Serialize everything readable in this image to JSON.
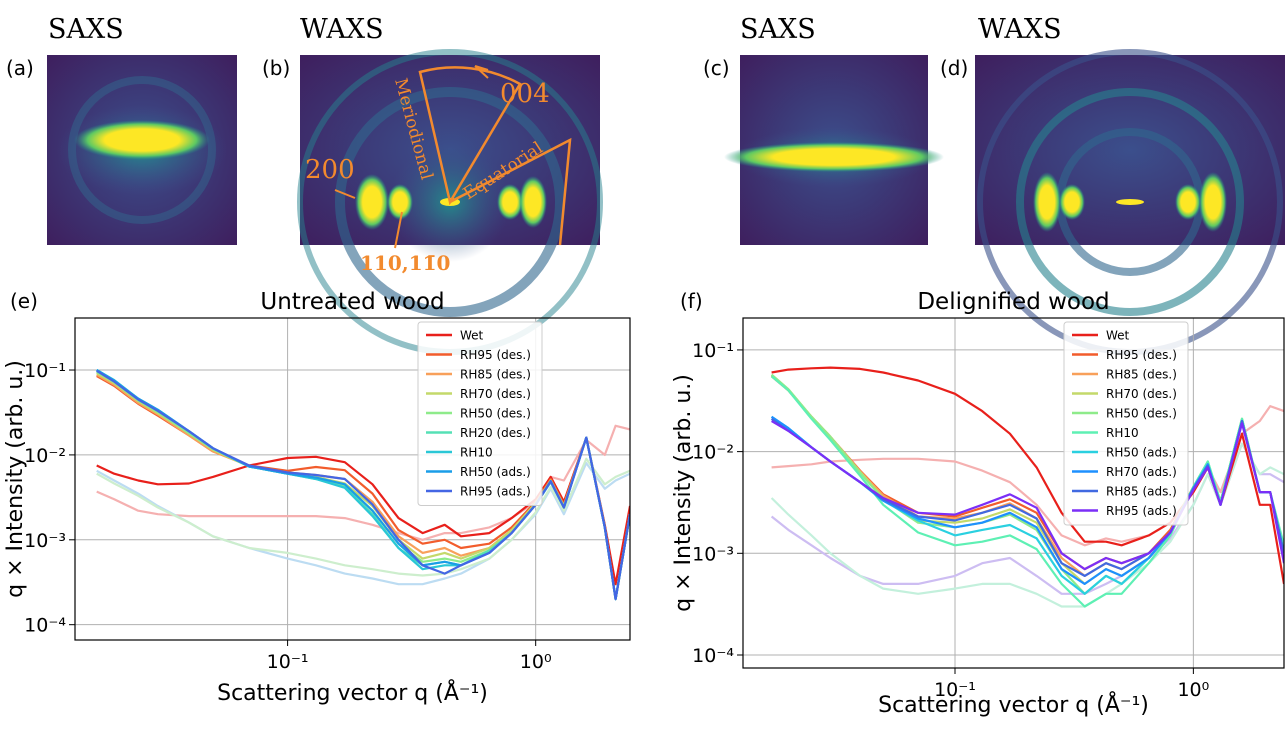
{
  "panels": [
    {
      "label": "(a)",
      "title": "SAXS"
    },
    {
      "label": "(b)",
      "title": "WAXS",
      "annotations": [
        "004",
        "Meriodional",
        "Equatorial",
        "200",
        "110,11̄0"
      ]
    },
    {
      "label": "(c)",
      "title": "SAXS"
    },
    {
      "label": "(d)",
      "title": "WAXS"
    }
  ],
  "chart_data": [
    {
      "type": "line",
      "panel_label": "(e)",
      "title": "Untreated wood",
      "x_label": "Scattering vector q (Å⁻¹)",
      "y_label": "q × Intensity (arb. u.)",
      "log_x": true,
      "log_y": true,
      "grid": true,
      "legend": "upper right",
      "xlim": [
        0.0139,
        2.4
      ],
      "ylim": [
        6.6e-05,
        0.41
      ],
      "xticks": [
        {
          "value": 0.1,
          "label": "10⁻¹"
        },
        {
          "value": 1,
          "label": "10⁰"
        }
      ],
      "yticks": [
        {
          "value": 0.0001,
          "label": "10⁻⁴"
        },
        {
          "value": 0.001,
          "label": "10⁻³"
        },
        {
          "value": 0.01,
          "label": "10⁻²"
        },
        {
          "value": 0.1,
          "label": "10⁻¹"
        }
      ],
      "x": [
        0.017,
        0.02,
        0.025,
        0.03,
        0.04,
        0.05,
        0.07,
        0.1,
        0.13,
        0.17,
        0.22,
        0.28,
        0.35,
        0.43,
        0.5,
        0.65,
        0.8,
        1.0,
        1.15,
        1.3,
        1.6,
        1.9,
        2.1,
        2.4
      ],
      "series": [
        {
          "color": "#f5b0b0",
          "values": [
            0.0037,
            0.003,
            0.0022,
            0.002,
            0.0019,
            0.0019,
            0.0019,
            0.0019,
            0.0019,
            0.0018,
            0.0015,
            0.0012,
            0.001,
            0.0012,
            0.0012,
            0.0014,
            0.0018,
            0.0028,
            0.0055,
            0.005,
            0.015,
            0.01,
            0.022,
            0.02
          ]
        },
        {
          "color": "#bcdcf2",
          "values": [
            0.0065,
            0.005,
            0.0035,
            0.0025,
            0.0016,
            0.0011,
            0.0008,
            0.0006,
            0.0005,
            0.0004,
            0.00035,
            0.0003,
            0.0003,
            0.00035,
            0.0004,
            0.0006,
            0.001,
            0.002,
            0.004,
            0.002,
            0.008,
            0.004,
            0.005,
            0.006
          ]
        },
        {
          "color": "#cdeecd",
          "values": [
            0.006,
            0.0046,
            0.0033,
            0.0024,
            0.0016,
            0.0011,
            0.0008,
            0.0007,
            0.0006,
            0.0005,
            0.00045,
            0.0004,
            0.00038,
            0.0004,
            0.00045,
            0.0006,
            0.001,
            0.0021,
            0.0042,
            0.0022,
            0.009,
            0.0045,
            0.0055,
            0.0065
          ]
        },
        {
          "name": "Wet",
          "color": "#e8201b",
          "values": [
            0.0075,
            0.006,
            0.005,
            0.0045,
            0.0046,
            0.0055,
            0.0075,
            0.0092,
            0.0095,
            0.0082,
            0.0045,
            0.0018,
            0.0012,
            0.0015,
            0.0011,
            0.0012,
            0.0018,
            0.003,
            0.0055,
            0.0028,
            0.016,
            0.0015,
            0.0003,
            0.0025
          ]
        },
        {
          "name": "RH95 (des.)",
          "color": "#f25c2c",
          "values": [
            0.085,
            0.065,
            0.04,
            0.029,
            0.017,
            0.011,
            0.0075,
            0.0065,
            0.0072,
            0.0066,
            0.0035,
            0.0013,
            0.0009,
            0.001,
            0.0008,
            0.0009,
            0.0014,
            0.0028,
            0.0052,
            0.0026,
            0.016,
            0.0014,
            0.0002,
            0.002
          ]
        },
        {
          "name": "RH85 (des.)",
          "color": "#f8a05a",
          "values": [
            0.088,
            0.067,
            0.041,
            0.03,
            0.017,
            0.011,
            0.0074,
            0.0062,
            0.0058,
            0.0052,
            0.0028,
            0.0011,
            0.0007,
            0.0008,
            0.00065,
            0.0008,
            0.0013,
            0.0027,
            0.005,
            0.0025,
            0.016,
            0.0014,
            0.0002,
            0.002
          ]
        },
        {
          "name": "RH70 (des.)",
          "color": "#c4d96a",
          "values": [
            0.092,
            0.07,
            0.043,
            0.031,
            0.018,
            0.0115,
            0.0073,
            0.006,
            0.0055,
            0.0046,
            0.0025,
            0.001,
            0.0006,
            0.0007,
            0.0006,
            0.0008,
            0.0013,
            0.0027,
            0.005,
            0.0025,
            0.016,
            0.0014,
            0.0002,
            0.002
          ]
        },
        {
          "name": "RH50 (des.)",
          "color": "#8eeb8a",
          "values": [
            0.095,
            0.072,
            0.044,
            0.032,
            0.018,
            0.0117,
            0.0073,
            0.006,
            0.0053,
            0.0044,
            0.0022,
            0.0009,
            0.00055,
            0.0006,
            0.00055,
            0.00075,
            0.0012,
            0.0026,
            0.0049,
            0.0024,
            0.016,
            0.0014,
            0.0002,
            0.002
          ]
        },
        {
          "name": "RH20 (des.)",
          "color": "#55e0b5",
          "values": [
            0.098,
            0.074,
            0.045,
            0.033,
            0.019,
            0.012,
            0.0073,
            0.006,
            0.0052,
            0.0042,
            0.002,
            0.0008,
            0.0005,
            0.00055,
            0.0005,
            0.00075,
            0.0012,
            0.0026,
            0.0049,
            0.0024,
            0.016,
            0.0014,
            0.0002,
            0.002
          ]
        },
        {
          "name": "RH10",
          "color": "#2ac7d6",
          "values": [
            0.1,
            0.076,
            0.046,
            0.034,
            0.019,
            0.012,
            0.0073,
            0.006,
            0.0052,
            0.0041,
            0.0019,
            0.0008,
            0.00045,
            0.0005,
            0.0005,
            0.0007,
            0.0012,
            0.0026,
            0.0048,
            0.0024,
            0.016,
            0.0014,
            0.0002,
            0.002
          ]
        },
        {
          "name": "RH50 (ads.)",
          "color": "#1a9de8",
          "values": [
            0.1,
            0.075,
            0.046,
            0.034,
            0.019,
            0.012,
            0.0073,
            0.006,
            0.0054,
            0.0045,
            0.0022,
            0.0009,
            0.0005,
            0.00055,
            0.0005,
            0.0007,
            0.0012,
            0.0026,
            0.0049,
            0.0024,
            0.016,
            0.0014,
            0.0002,
            0.002
          ]
        },
        {
          "name": "RH95 (ads.)",
          "color": "#4466e4",
          "values": [
            0.098,
            0.073,
            0.045,
            0.033,
            0.019,
            0.012,
            0.0075,
            0.0062,
            0.0058,
            0.0052,
            0.0026,
            0.001,
            0.0005,
            0.0004,
            0.0005,
            0.0007,
            0.0012,
            0.0026,
            0.0049,
            0.0024,
            0.016,
            0.0014,
            0.0002,
            0.002
          ]
        }
      ]
    },
    {
      "type": "line",
      "panel_label": "(f)",
      "title": "Delignified wood",
      "x_label": "Scattering vector q (Å⁻¹)",
      "y_label": "q × Intensity (arb. u.)",
      "log_x": true,
      "log_y": true,
      "grid": true,
      "legend": "upper right",
      "xlim": [
        0.0129,
        2.4
      ],
      "ylim": [
        7.45e-05,
        0.206
      ],
      "xticks": [
        {
          "value": 0.1,
          "label": "10⁻¹"
        },
        {
          "value": 1,
          "label": "10⁰"
        }
      ],
      "yticks": [
        {
          "value": 0.0001,
          "label": "10⁻⁴"
        },
        {
          "value": 0.001,
          "label": "10⁻³"
        },
        {
          "value": 0.01,
          "label": "10⁻²"
        },
        {
          "value": 0.1,
          "label": "10⁻¹"
        }
      ],
      "x": [
        0.017,
        0.02,
        0.025,
        0.03,
        0.04,
        0.05,
        0.07,
        0.1,
        0.13,
        0.17,
        0.22,
        0.28,
        0.35,
        0.43,
        0.5,
        0.65,
        0.8,
        1.0,
        1.15,
        1.3,
        1.6,
        1.9,
        2.1,
        2.4
      ],
      "series": [
        {
          "color": "#f5b0b0",
          "values": [
            0.007,
            0.0072,
            0.0075,
            0.008,
            0.0083,
            0.0085,
            0.0085,
            0.008,
            0.0065,
            0.005,
            0.003,
            0.0015,
            0.0012,
            0.0014,
            0.0013,
            0.0015,
            0.002,
            0.004,
            0.007,
            0.004,
            0.015,
            0.02,
            0.028,
            0.025
          ]
        },
        {
          "color": "#cdbdf2",
          "values": [
            0.0023,
            0.0017,
            0.0012,
            0.0009,
            0.0006,
            0.0005,
            0.0005,
            0.0006,
            0.0008,
            0.0009,
            0.0006,
            0.0004,
            0.0004,
            0.0005,
            0.0006,
            0.0009,
            0.0014,
            0.003,
            0.006,
            0.003,
            0.012,
            0.006,
            0.006,
            0.005
          ]
        },
        {
          "color": "#c3f0dc",
          "values": [
            0.0035,
            0.0024,
            0.0015,
            0.001,
            0.0006,
            0.00045,
            0.0004,
            0.00045,
            0.0005,
            0.0005,
            0.0004,
            0.0003,
            0.0003,
            0.0004,
            0.0005,
            0.0008,
            0.0013,
            0.003,
            0.006,
            0.003,
            0.012,
            0.006,
            0.007,
            0.006
          ]
        },
        {
          "name": "Wet",
          "color": "#e8201b",
          "values": [
            0.06,
            0.064,
            0.066,
            0.067,
            0.065,
            0.06,
            0.05,
            0.037,
            0.025,
            0.015,
            0.007,
            0.0025,
            0.0013,
            0.0013,
            0.0012,
            0.0015,
            0.002,
            0.004,
            0.007,
            0.003,
            0.015,
            0.003,
            0.003,
            0.0005
          ]
        },
        {
          "name": "RH95 (des.)",
          "color": "#f25c2c",
          "values": [
            0.055,
            0.04,
            0.022,
            0.014,
            0.0065,
            0.0038,
            0.0025,
            0.0023,
            0.0028,
            0.0034,
            0.0025,
            0.001,
            0.0007,
            0.0009,
            0.0008,
            0.001,
            0.0017,
            0.0045,
            0.0075,
            0.0032,
            0.02,
            0.004,
            0.004,
            0.001
          ]
        },
        {
          "name": "RH85 (des.)",
          "color": "#f8a05a",
          "values": [
            0.056,
            0.04,
            0.022,
            0.014,
            0.0064,
            0.0037,
            0.0023,
            0.0022,
            0.0025,
            0.0031,
            0.0022,
            0.0009,
            0.0006,
            0.0008,
            0.0007,
            0.001,
            0.0016,
            0.0045,
            0.0075,
            0.0032,
            0.02,
            0.004,
            0.004,
            0.001
          ]
        },
        {
          "name": "RH70 (des.)",
          "color": "#c4d96a",
          "values": [
            0.057,
            0.041,
            0.022,
            0.014,
            0.0063,
            0.0035,
            0.0021,
            0.002,
            0.0022,
            0.0027,
            0.002,
            0.0008,
            0.0005,
            0.0007,
            0.0006,
            0.0009,
            0.0016,
            0.0045,
            0.0078,
            0.0032,
            0.021,
            0.004,
            0.004,
            0.001
          ]
        },
        {
          "name": "RH50 (des.)",
          "color": "#8eeb8a",
          "values": [
            0.057,
            0.041,
            0.022,
            0.014,
            0.0062,
            0.0034,
            0.002,
            0.0018,
            0.002,
            0.0024,
            0.0017,
            0.0007,
            0.0004,
            0.0006,
            0.0005,
            0.0009,
            0.0016,
            0.0045,
            0.008,
            0.0032,
            0.021,
            0.004,
            0.004,
            0.001
          ]
        },
        {
          "name": "RH10",
          "color": "#5ef0b4",
          "values": [
            0.055,
            0.04,
            0.021,
            0.013,
            0.0058,
            0.003,
            0.0016,
            0.0012,
            0.0013,
            0.0015,
            0.0011,
            0.0005,
            0.0003,
            0.0004,
            0.0004,
            0.0008,
            0.0015,
            0.0045,
            0.008,
            0.0032,
            0.021,
            0.004,
            0.004,
            0.0012
          ]
        },
        {
          "name": "RH50 (ads.)",
          "color": "#2ad0e0",
          "values": [
            0.022,
            0.017,
            0.011,
            0.008,
            0.005,
            0.0033,
            0.0021,
            0.0015,
            0.0017,
            0.0019,
            0.0014,
            0.0006,
            0.0004,
            0.0006,
            0.0005,
            0.0009,
            0.0016,
            0.0044,
            0.0075,
            0.003,
            0.02,
            0.004,
            0.004,
            0.001
          ]
        },
        {
          "name": "RH70 (ads.)",
          "color": "#1e90ff",
          "values": [
            0.022,
            0.017,
            0.011,
            0.008,
            0.005,
            0.0033,
            0.0022,
            0.0018,
            0.002,
            0.0025,
            0.0018,
            0.0007,
            0.0005,
            0.0007,
            0.0006,
            0.0009,
            0.0016,
            0.0044,
            0.0075,
            0.003,
            0.02,
            0.004,
            0.004,
            0.001
          ]
        },
        {
          "name": "RH85 (ads.)",
          "color": "#4169e1",
          "values": [
            0.021,
            0.016,
            0.011,
            0.008,
            0.005,
            0.0034,
            0.0023,
            0.0021,
            0.0025,
            0.003,
            0.0022,
            0.0008,
            0.0006,
            0.0008,
            0.0007,
            0.001,
            0.0016,
            0.0043,
            0.0072,
            0.003,
            0.02,
            0.004,
            0.004,
            0.001
          ]
        },
        {
          "name": "RH95 (ads.)",
          "color": "#7b2ff7",
          "values": [
            0.02,
            0.016,
            0.011,
            0.008,
            0.005,
            0.0035,
            0.0025,
            0.0024,
            0.003,
            0.0038,
            0.0028,
            0.001,
            0.0007,
            0.0009,
            0.0008,
            0.001,
            0.0016,
            0.0042,
            0.007,
            0.003,
            0.019,
            0.004,
            0.004,
            0.0008
          ]
        }
      ]
    }
  ]
}
